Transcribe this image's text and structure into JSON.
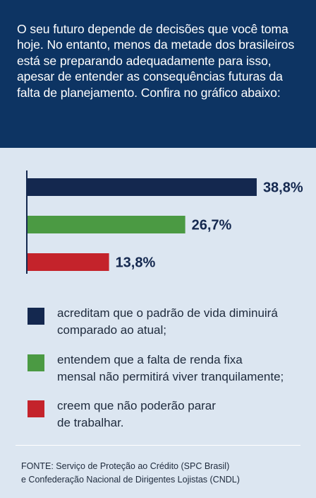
{
  "intro_text": "O seu futuro depende de decisões que você toma hoje. No entanto, menos da metade dos brasileiros está se preparando adequadamente para isso, apesar de entender as consequências futuras da falta de planejamento. Confira no gráfico abaixo:",
  "chart_data": {
    "type": "bar",
    "orientation": "horizontal",
    "title": "",
    "xlabel": "",
    "ylabel": "",
    "xlim": [
      0,
      40
    ],
    "grid": false,
    "legend_position": "bottom",
    "categories": [
      "acreditam que o padrão de vida diminuirá comparado ao atual;",
      "entendem que a falta de renda fixa mensal não permitirá viver tranquilamente;",
      "creem que não poderão parar de trabalhar."
    ],
    "values": [
      38.8,
      26.7,
      13.8
    ],
    "value_labels": [
      "38,8%",
      "26,7%",
      "13,8%"
    ],
    "colors": [
      "#14284f",
      "#4b9a43",
      "#c4232b"
    ]
  },
  "legend": [
    {
      "line1": "acreditam que o padrão de vida diminuirá",
      "line2": "comparado ao atual;",
      "color": "#14284f"
    },
    {
      "line1": "entendem que a falta de renda fixa",
      "line2": "mensal não permitirá viver tranquilamente;",
      "color": "#4b9a43"
    },
    {
      "line1": "creem que não poderão parar",
      "line2": "de trabalhar.",
      "color": "#c4232b"
    }
  ],
  "source": {
    "line1": "FONTE: Serviço de Proteção ao Crédito (SPC Brasil)",
    "line2": "e Confederação Nacional de Dirigentes Lojistas (CNDL)"
  },
  "colors": {
    "header_bg": "#0d3463",
    "panel_bg": "#dce6f1",
    "label_text": "#14284f"
  }
}
